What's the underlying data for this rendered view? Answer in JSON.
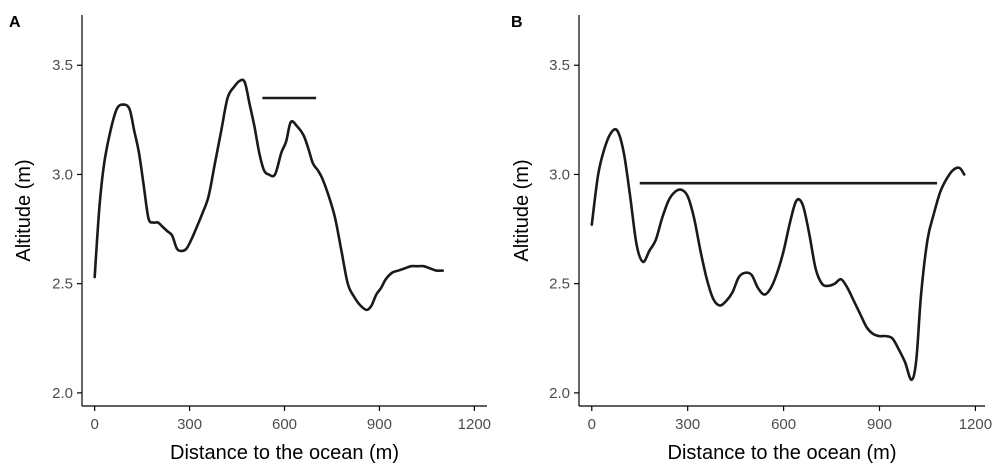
{
  "chart_data": [
    {
      "panel_label": "A",
      "type": "line",
      "xlabel": "Distance to the ocean (m)",
      "ylabel": "Altitude (m)",
      "xlim": [
        -40,
        1240
      ],
      "ylim": [
        1.94,
        3.73
      ],
      "xticks": [
        0,
        300,
        600,
        900,
        1200
      ],
      "yticks": [
        2.0,
        2.5,
        3.0,
        3.5
      ],
      "xtick_labels": [
        "0",
        "300",
        "600",
        "900",
        "1200"
      ],
      "ytick_labels": [
        "2.0",
        "2.5",
        "3.0",
        "3.5"
      ],
      "grid": false,
      "series": [
        {
          "x": [
            0,
            15,
            30,
            50,
            70,
            90,
            110,
            125,
            140,
            155,
            170,
            185,
            200,
            215,
            230,
            245,
            260,
            275,
            290,
            305,
            320,
            340,
            360,
            380,
            400,
            420,
            440,
            460,
            475,
            490,
            505,
            520,
            535,
            550,
            570,
            590,
            605,
            620,
            640,
            660,
            675,
            690,
            705,
            720,
            740,
            760,
            780,
            800,
            820,
            840,
            860,
            875,
            890,
            905,
            920,
            940,
            960,
            980,
            1000,
            1020,
            1040,
            1060,
            1080,
            1100
          ],
          "y": [
            2.53,
            2.85,
            3.05,
            3.2,
            3.3,
            3.32,
            3.3,
            3.2,
            3.1,
            2.95,
            2.8,
            2.78,
            2.78,
            2.76,
            2.74,
            2.72,
            2.66,
            2.65,
            2.66,
            2.7,
            2.75,
            2.82,
            2.9,
            3.05,
            3.2,
            3.35,
            3.4,
            3.43,
            3.42,
            3.32,
            3.22,
            3.1,
            3.02,
            3.0,
            3.0,
            3.1,
            3.15,
            3.24,
            3.22,
            3.18,
            3.12,
            3.05,
            3.02,
            2.98,
            2.9,
            2.8,
            2.65,
            2.5,
            2.44,
            2.4,
            2.38,
            2.4,
            2.45,
            2.48,
            2.52,
            2.55,
            2.56,
            2.57,
            2.58,
            2.58,
            2.58,
            2.57,
            2.56,
            2.56
          ]
        }
      ],
      "hline": {
        "y": 3.35,
        "x": [
          530,
          700
        ]
      }
    },
    {
      "panel_label": "B",
      "type": "line",
      "xlabel": "Distance to the ocean (m)",
      "ylabel": "Altitude (m)",
      "xlim": [
        -40,
        1230
      ],
      "ylim": [
        1.94,
        3.73
      ],
      "xticks": [
        0,
        300,
        600,
        900,
        1200
      ],
      "yticks": [
        2.0,
        2.5,
        3.0,
        3.5
      ],
      "xtick_labels": [
        "0",
        "300",
        "600",
        "900",
        "1200"
      ],
      "ytick_labels": [
        "2.0",
        "2.5",
        "3.0",
        "3.5"
      ],
      "grid": false,
      "series": [
        {
          "x": [
            0,
            20,
            40,
            60,
            80,
            100,
            120,
            140,
            160,
            180,
            200,
            220,
            240,
            260,
            280,
            300,
            320,
            340,
            360,
            380,
            400,
            420,
            440,
            460,
            480,
            500,
            520,
            540,
            560,
            580,
            600,
            620,
            640,
            660,
            680,
            700,
            720,
            740,
            760,
            780,
            800,
            820,
            840,
            860,
            880,
            900,
            920,
            940,
            960,
            980,
            1000,
            1015,
            1030,
            1050,
            1070,
            1090,
            1110,
            1130,
            1150,
            1165
          ],
          "y": [
            2.77,
            3.0,
            3.12,
            3.19,
            3.2,
            3.1,
            2.9,
            2.68,
            2.6,
            2.65,
            2.7,
            2.8,
            2.88,
            2.92,
            2.93,
            2.9,
            2.8,
            2.65,
            2.52,
            2.43,
            2.4,
            2.42,
            2.46,
            2.53,
            2.55,
            2.54,
            2.48,
            2.45,
            2.48,
            2.55,
            2.65,
            2.78,
            2.88,
            2.86,
            2.73,
            2.57,
            2.5,
            2.49,
            2.5,
            2.52,
            2.48,
            2.42,
            2.36,
            2.3,
            2.27,
            2.26,
            2.26,
            2.25,
            2.2,
            2.14,
            2.06,
            2.15,
            2.45,
            2.7,
            2.82,
            2.92,
            2.98,
            3.02,
            3.03,
            3.0
          ]
        }
      ],
      "hline": {
        "y": 2.96,
        "x": [
          150,
          1080
        ]
      }
    }
  ]
}
